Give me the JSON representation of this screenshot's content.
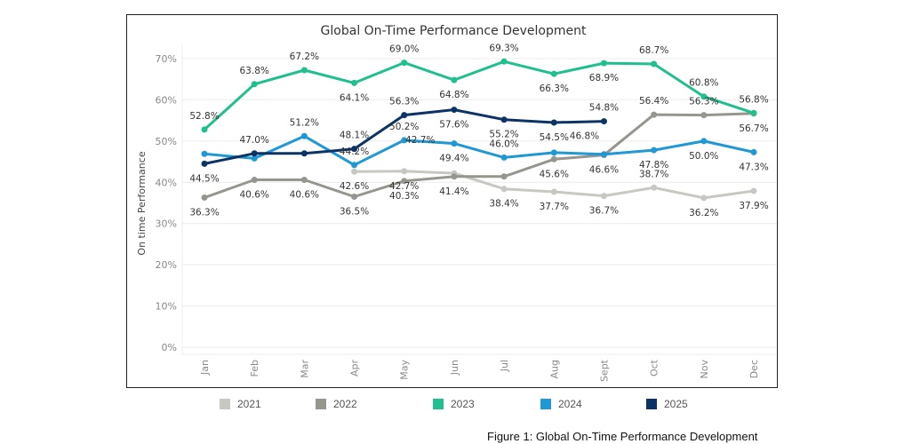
{
  "chart_data": {
    "type": "line",
    "title": "Global On-Time Performance Development",
    "xlabel": "",
    "ylabel": "On time Performance",
    "ylim": [
      0,
      72
    ],
    "yticks": [
      0,
      10,
      20,
      30,
      40,
      50,
      60,
      70
    ],
    "ytick_labels": [
      "0%",
      "10%",
      "20%",
      "30%",
      "40%",
      "50%",
      "60%",
      "70%"
    ],
    "grid": true,
    "legend_position": "bottom",
    "categories": [
      "Jan",
      "Feb",
      "Mar",
      "Apr",
      "May",
      "Jun",
      "Jul",
      "Aug",
      "Sept",
      "Oct",
      "Nov",
      "Dec"
    ],
    "series": [
      {
        "name": "2021",
        "color": "#c8c8c3",
        "values": [
          null,
          null,
          null,
          42.6,
          42.7,
          42.2,
          38.4,
          37.7,
          36.7,
          38.7,
          36.2,
          37.9
        ],
        "labels": [
          null,
          null,
          null,
          "42.6%",
          "42.7%",
          null,
          "38.4%",
          "37.7%",
          "36.7%",
          "38.7%",
          "36.2%",
          "37.9%"
        ],
        "label_pos": [
          0,
          0,
          0,
          1,
          1,
          0,
          1,
          1,
          1,
          -1,
          1,
          1
        ]
      },
      {
        "name": "2022",
        "color": "#96968f",
        "values": [
          36.3,
          40.6,
          40.6,
          36.5,
          40.3,
          41.4,
          41.4,
          45.6,
          46.6,
          56.4,
          56.3,
          56.7
        ],
        "labels": [
          "36.3%",
          "40.6%",
          "40.6%",
          "36.5%",
          "40.3%",
          "41.4%",
          null,
          "45.6%",
          "46.6%",
          "56.4%",
          "56.3%",
          "56.7%"
        ],
        "label_pos": [
          1,
          1,
          1,
          1,
          1,
          1,
          0,
          1,
          1,
          -1,
          -1,
          1
        ]
      },
      {
        "name": "2023",
        "color": "#1fbf8f",
        "values": [
          52.8,
          63.8,
          67.2,
          64.1,
          69.0,
          64.8,
          69.3,
          66.3,
          68.9,
          68.7,
          60.8,
          56.8
        ],
        "labels": [
          "52.8%",
          "63.8%",
          "67.2%",
          "64.1%",
          "69.0%",
          "64.8%",
          "69.3%",
          "66.3%",
          "68.9%",
          "68.7%",
          "60.8%",
          "56.8%"
        ],
        "label_pos": [
          -1,
          -1,
          -1,
          1,
          -1,
          1,
          -1,
          1,
          1,
          -1,
          -1,
          -1
        ]
      },
      {
        "name": "2024",
        "color": "#1f98d4",
        "values": [
          46.9,
          45.8,
          51.2,
          44.2,
          50.2,
          49.4,
          46.0,
          47.2,
          46.8,
          47.8,
          50.0,
          47.3
        ],
        "labels": [
          null,
          null,
          "51.2%",
          "44.2%",
          "50.2%",
          "49.4%",
          "46.0%",
          null,
          null,
          "47.8%",
          "50.0%",
          "47.3%"
        ],
        "label_pos": [
          0,
          0,
          -1,
          -1,
          -1,
          1,
          -1,
          0,
          0,
          1,
          1,
          1
        ]
      },
      {
        "name": "2025",
        "color": "#0b3366",
        "values": [
          44.5,
          47.0,
          47.0,
          48.1,
          56.3,
          57.6,
          55.2,
          54.5,
          54.8,
          null,
          null,
          null
        ],
        "labels": [
          "44.5%",
          "47.0%",
          null,
          "48.1%",
          "56.3%",
          "57.6%",
          "55.2%",
          "54.5%",
          "54.8%",
          null,
          null,
          null
        ],
        "label_pos": [
          1,
          -1,
          0,
          -1,
          -1,
          1,
          1,
          1,
          -1,
          0,
          0,
          0
        ]
      }
    ],
    "extra_labels": [
      {
        "text": "46.8%",
        "category": "Sept",
        "value": 46.8,
        "note": "label placed near 2025 Sept / 2024 Sept"
      },
      {
        "text": "42.7%",
        "category": "May",
        "value": 42.7
      }
    ]
  },
  "legend": {
    "items": [
      {
        "label": "2021",
        "color": "#c8c8c3"
      },
      {
        "label": "2022",
        "color": "#96968f"
      },
      {
        "label": "2023",
        "color": "#1fbf8f"
      },
      {
        "label": "2024",
        "color": "#1f98d4"
      },
      {
        "label": "2025",
        "color": "#0b3366"
      }
    ]
  },
  "caption": "Figure 1: Global On-Time Performance Development"
}
